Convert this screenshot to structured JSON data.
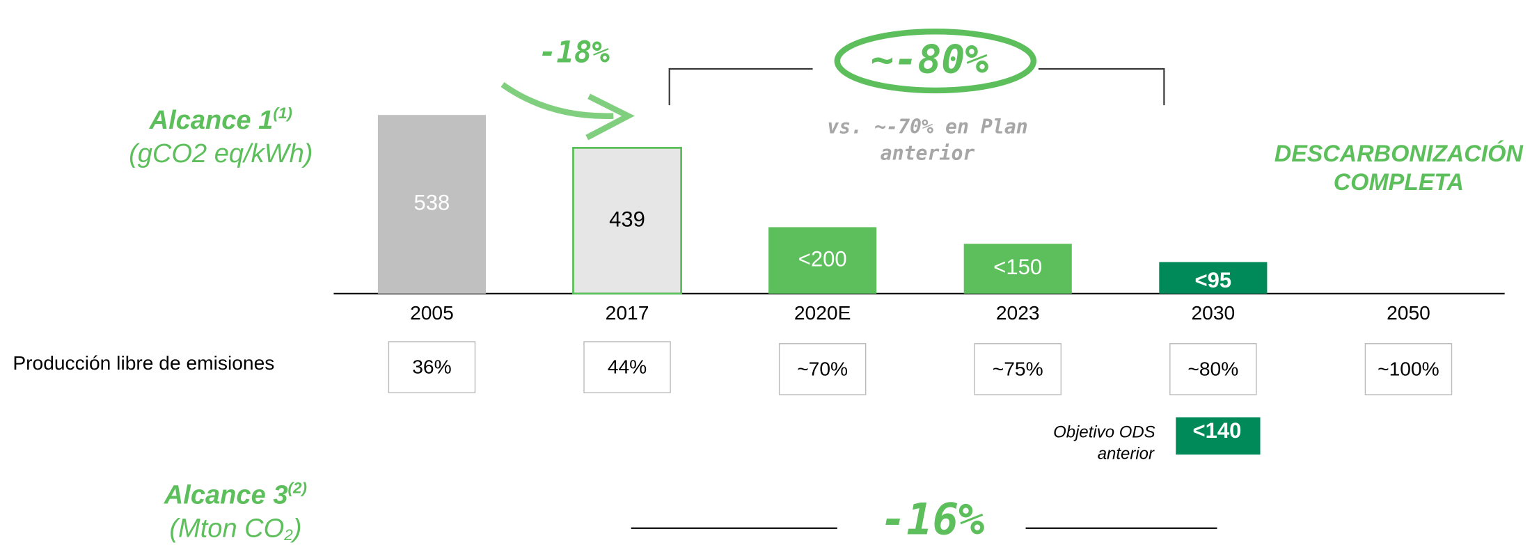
{
  "chart_data": {
    "type": "bar",
    "title": [
      "Alcance 1",
      "(1)",
      "(gCO2 eq/kWh)"
    ],
    "categories": [
      "2005",
      "2017",
      "2020E",
      "2023",
      "2030",
      "2050"
    ],
    "values": [
      538,
      439,
      200,
      150,
      95,
      null
    ],
    "value_labels": [
      "538",
      "439",
      "<200",
      "<150",
      "<95",
      null
    ],
    "colors": [
      "#c0c0c0",
      "#e6e6e6",
      "#5cbf5c",
      "#5cbf5c",
      "#008a5a",
      null
    ],
    "ylim": [
      0,
      600
    ],
    "emission_free": {
      "label": "Producción libre de emisiones",
      "values": [
        "36%",
        "44%",
        "~70%",
        "~75%",
        "~80%",
        "~100%"
      ]
    },
    "annotations": {
      "change_2005_2017": "-18%",
      "change_target": "~-80%",
      "previous_plan": [
        "vs. ~-70% en Plan",
        "anterior"
      ],
      "full_decarbonization": [
        "DESCARBONIZACIÓN",
        "COMPLETA"
      ],
      "previous_ods_label": [
        "Objetivo ODS",
        "anterior"
      ],
      "previous_ods_value": "<140"
    },
    "scope3": {
      "title": [
        "Alcance 3",
        "(2)"
      ],
      "unit": [
        "(Mton CO",
        "2",
        ")"
      ],
      "change": "-16%"
    }
  }
}
